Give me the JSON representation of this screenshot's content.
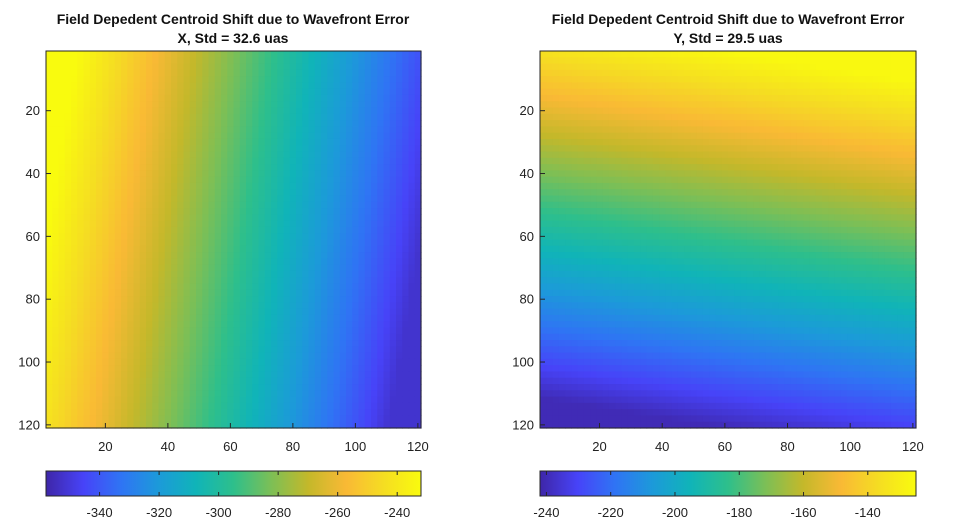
{
  "chart_data": [
    {
      "type": "heatmap",
      "title": "Field Depedent Centroid Shift due to Wavefront Error",
      "subtitle": "X, Std = 32.6 uas",
      "xlabel": "",
      "ylabel": "",
      "xlim": [
        1,
        121
      ],
      "ylim": [
        1,
        121
      ],
      "y_reversed": true,
      "x_ticks": [
        20,
        40,
        60,
        80,
        100,
        120
      ],
      "y_ticks": [
        20,
        40,
        60,
        80,
        100,
        120
      ],
      "colormap": "parula",
      "color_range": [
        -358,
        -232
      ],
      "colorbar": {
        "placement": "bottom",
        "ticks": [
          -340,
          -320,
          -300,
          -280,
          -260,
          -240
        ]
      },
      "field_model": {
        "gradient_direction": "x",
        "value_at_left_edge": -232,
        "value_at_right_edge": -352,
        "iso_line_skew_per_row": 0.17,
        "values_grid": [
          [
            -232,
            -272,
            -312,
            -352
          ],
          [
            -238,
            -278,
            -318,
            -358
          ]
        ]
      }
    },
    {
      "type": "heatmap",
      "title": "Field Depedent Centroid Shift due to Wavefront Error",
      "subtitle": "Y, Std = 29.5 uas",
      "xlabel": "",
      "ylabel": "",
      "xlim": [
        1,
        121
      ],
      "ylim": [
        1,
        121
      ],
      "y_reversed": true,
      "x_ticks": [
        20,
        40,
        60,
        80,
        100,
        120
      ],
      "y_ticks": [
        20,
        40,
        60,
        80,
        100,
        120
      ],
      "colormap": "parula",
      "color_range": [
        -242,
        -125
      ],
      "colorbar": {
        "placement": "bottom",
        "ticks": [
          -240,
          -220,
          -200,
          -180,
          -160,
          -140
        ]
      },
      "field_model": {
        "gradient_direction": "y",
        "value_at_top_edge": -126,
        "value_at_bottom_edge": -240,
        "iso_line_tilt_per_col": -0.16,
        "values_grid": [
          [
            -126,
            -130,
            -134
          ],
          [
            -182,
            -170,
            -160
          ],
          [
            -240,
            -236,
            -232
          ]
        ]
      }
    }
  ],
  "colors": {
    "parula_stops": [
      "#3e26a8",
      "#4743f8",
      "#2f74f4",
      "#1c9ad9",
      "#10b4b8",
      "#2ebf8b",
      "#7cbf56",
      "#c4b82a",
      "#f9b935",
      "#f5dd22",
      "#f9fb0e"
    ]
  }
}
